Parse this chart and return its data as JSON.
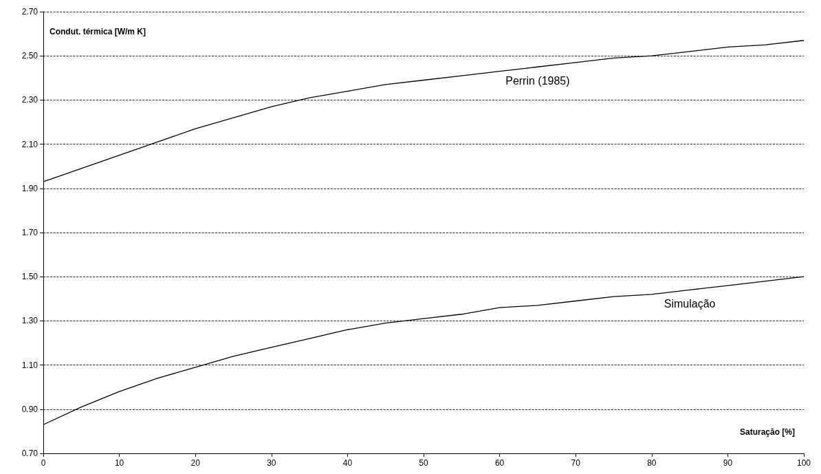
{
  "chart_data": {
    "type": "line",
    "xlabel": "Saturação [%]",
    "ylabel": "Condut. térmica [W/m K]",
    "x": [
      0,
      5,
      10,
      15,
      20,
      25,
      30,
      35,
      40,
      45,
      50,
      55,
      60,
      65,
      70,
      75,
      80,
      85,
      90,
      95,
      100
    ],
    "series": [
      {
        "name": "Perrin (1985)",
        "color": "#000000",
        "values": [
          1.93,
          1.99,
          2.05,
          2.11,
          2.17,
          2.22,
          2.27,
          2.31,
          2.34,
          2.37,
          2.39,
          2.41,
          2.43,
          2.45,
          2.47,
          2.49,
          2.5,
          2.52,
          2.54,
          2.55,
          2.57
        ]
      },
      {
        "name": "Simulação",
        "color": "#000000",
        "values": [
          0.83,
          0.91,
          0.98,
          1.04,
          1.09,
          1.14,
          1.18,
          1.22,
          1.26,
          1.29,
          1.31,
          1.33,
          1.36,
          1.37,
          1.39,
          1.41,
          1.42,
          1.44,
          1.46,
          1.48,
          1.5
        ]
      }
    ],
    "xlim": [
      0,
      100
    ],
    "xticks": [
      0,
      10,
      20,
      30,
      40,
      50,
      60,
      70,
      80,
      90,
      100
    ],
    "ylim": [
      0.7,
      2.7
    ],
    "yticks": [
      {
        "value": 0.7,
        "label": "0.70"
      },
      {
        "value": 0.9,
        "label": "0.90"
      },
      {
        "value": 1.1,
        "label": "1.10"
      },
      {
        "value": 1.3,
        "label": "1.30"
      },
      {
        "value": 1.5,
        "label": "1.50"
      },
      {
        "value": 1.7,
        "label": "1.70"
      },
      {
        "value": 1.9,
        "label": "1.90"
      },
      {
        "value": 2.1,
        "label": "2.10"
      },
      {
        "value": 2.3,
        "label": "2.30"
      },
      {
        "value": 2.5,
        "label": "2.50"
      },
      {
        "value": 2.7,
        "label": "2.70"
      }
    ],
    "grid": "y",
    "marker": "none",
    "line_style": "solid"
  }
}
